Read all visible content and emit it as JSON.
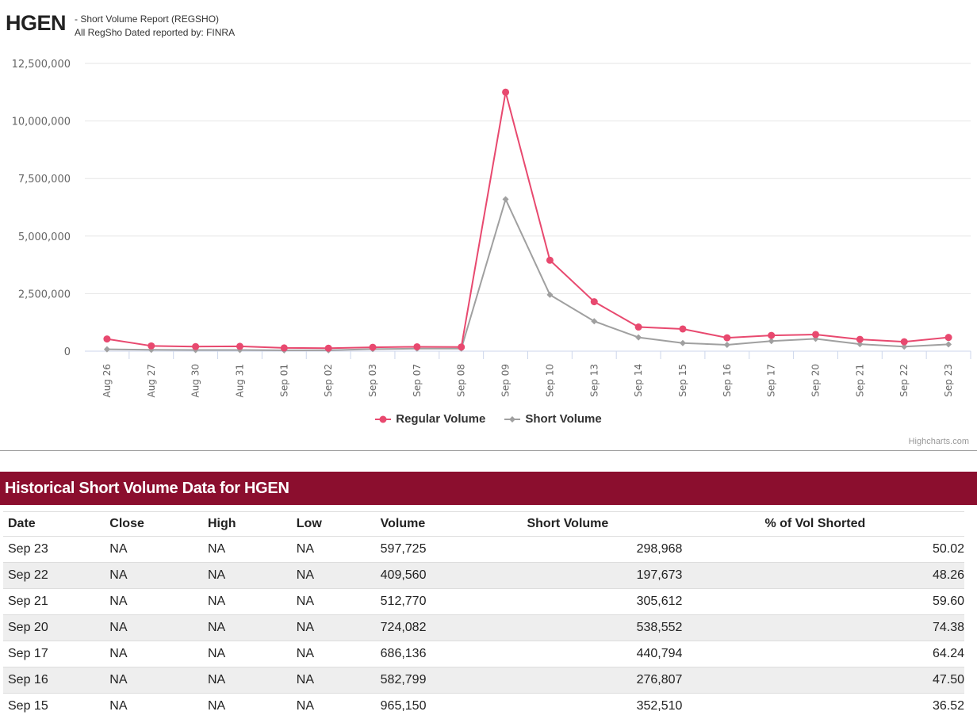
{
  "header": {
    "ticker": "HGEN",
    "subtitle_line1": "- Short Volume Report  (REGSHO)",
    "subtitle_line2": "All RegSho Dated reported by: FINRA"
  },
  "chart_data": {
    "type": "line",
    "categories": [
      "Aug 26",
      "Aug 27",
      "Aug 30",
      "Aug 31",
      "Sep 01",
      "Sep 02",
      "Sep 03",
      "Sep 07",
      "Sep 08",
      "Sep 09",
      "Sep 10",
      "Sep 13",
      "Sep 14",
      "Sep 15",
      "Sep 16",
      "Sep 17",
      "Sep 20",
      "Sep 21",
      "Sep 22",
      "Sep 23"
    ],
    "series": [
      {
        "name": "Regular Volume",
        "color": "#e8496f",
        "marker": "circle",
        "values": [
          530000,
          230000,
          200000,
          210000,
          140000,
          130000,
          170000,
          190000,
          180000,
          11250000,
          3950000,
          2150000,
          1050000,
          965150,
          582799,
          686136,
          724082,
          512770,
          409560,
          597725
        ]
      },
      {
        "name": "Short Volume",
        "color": "#a0a0a0",
        "marker": "diamond",
        "values": [
          80000,
          60000,
          50000,
          50000,
          40000,
          40000,
          90000,
          110000,
          110000,
          6600000,
          2450000,
          1300000,
          600000,
          352510,
          276807,
          440794,
          538552,
          305612,
          197673,
          298968
        ]
      }
    ],
    "ylim": [
      0,
      12500000
    ],
    "yticks": [
      0,
      2500000,
      5000000,
      7500000,
      10000000,
      12500000
    ],
    "ytick_labels": [
      "0",
      "2,500,000",
      "5,000,000",
      "7,500,000",
      "10,000,000",
      "12,500,000"
    ],
    "grid": true,
    "legend_position": "bottom-center"
  },
  "credits": "Highcharts.com",
  "section_title": "Historical Short Volume Data for HGEN",
  "table": {
    "headers": [
      "Date",
      "Close",
      "High",
      "Low",
      "Volume",
      "Short Volume",
      "% of Vol Shorted"
    ],
    "rows": [
      [
        "Sep 23",
        "NA",
        "NA",
        "NA",
        "597,725",
        "298,968",
        "50.02"
      ],
      [
        "Sep 22",
        "NA",
        "NA",
        "NA",
        "409,560",
        "197,673",
        "48.26"
      ],
      [
        "Sep 21",
        "NA",
        "NA",
        "NA",
        "512,770",
        "305,612",
        "59.60"
      ],
      [
        "Sep 20",
        "NA",
        "NA",
        "NA",
        "724,082",
        "538,552",
        "74.38"
      ],
      [
        "Sep 17",
        "NA",
        "NA",
        "NA",
        "686,136",
        "440,794",
        "64.24"
      ],
      [
        "Sep 16",
        "NA",
        "NA",
        "NA",
        "582,799",
        "276,807",
        "47.50"
      ],
      [
        "Sep 15",
        "NA",
        "NA",
        "NA",
        "965,150",
        "352,510",
        "36.52"
      ]
    ]
  }
}
